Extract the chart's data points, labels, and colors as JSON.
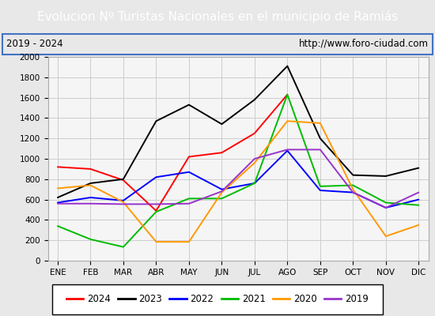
{
  "title": "Evolucion Nº Turistas Nacionales en el municipio de Ramiás",
  "subtitle_left": "2019 - 2024",
  "subtitle_right": "http://www.foro-ciudad.com",
  "months": [
    "ENE",
    "FEB",
    "MAR",
    "ABR",
    "MAY",
    "JUN",
    "JUL",
    "AGO",
    "SEP",
    "OCT",
    "NOV",
    "DIC"
  ],
  "ylim": [
    0,
    2000
  ],
  "yticks": [
    0,
    200,
    400,
    600,
    800,
    1000,
    1200,
    1400,
    1600,
    1800,
    2000
  ],
  "series": {
    "2024": {
      "color": "#ff0000",
      "data": [
        920,
        900,
        790,
        490,
        1020,
        1060,
        1250,
        1630,
        null,
        null,
        null,
        null
      ]
    },
    "2023": {
      "color": "#000000",
      "data": [
        620,
        760,
        800,
        1370,
        1530,
        1340,
        1580,
        1910,
        1200,
        840,
        830,
        910
      ]
    },
    "2022": {
      "color": "#0000ff",
      "data": [
        570,
        620,
        590,
        820,
        870,
        700,
        760,
        1080,
        690,
        670,
        520,
        600
      ]
    },
    "2021": {
      "color": "#00bb00",
      "data": [
        340,
        210,
        135,
        480,
        610,
        610,
        760,
        1630,
        730,
        740,
        570,
        545
      ]
    },
    "2020": {
      "color": "#ff9900",
      "data": [
        710,
        740,
        575,
        185,
        185,
        670,
        960,
        1370,
        1350,
        700,
        240,
        350
      ]
    },
    "2019": {
      "color": "#9933cc",
      "data": [
        560,
        560,
        555,
        555,
        560,
        680,
        1000,
        1090,
        1090,
        670,
        520,
        670
      ]
    }
  },
  "title_bg": "#4472c4",
  "title_color": "#ffffff",
  "title_fontsize": 11,
  "background_color": "#e8e8e8",
  "plot_bg": "#f5f5f5",
  "grid_color": "#cccccc",
  "border_color": "#4472c4",
  "legend_border": "#000000"
}
